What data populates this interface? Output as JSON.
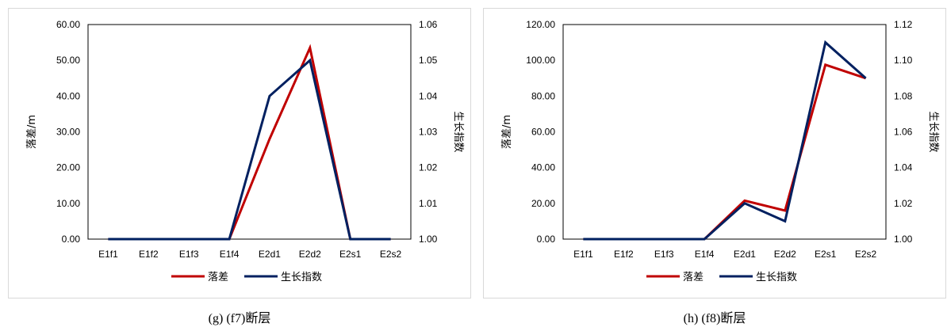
{
  "colors": {
    "series1": "#c00000",
    "series2": "#002060",
    "axis": "#000000",
    "border": "#d9d9d9"
  },
  "chart_data": [
    {
      "type": "line",
      "caption": "(g) (f7)断层",
      "categories": [
        "E1f1",
        "E1f2",
        "E1f3",
        "E1f4",
        "E2d1",
        "E2d2",
        "E2s1",
        "E2s2"
      ],
      "ylabel": "落差/m",
      "ylabel_right": "生长指数",
      "ylim": [
        0,
        60
      ],
      "yticks": [
        "0.00",
        "10.00",
        "20.00",
        "30.00",
        "40.00",
        "50.00",
        "60.00"
      ],
      "ylim_right": [
        1.0,
        1.06
      ],
      "yticks_right": [
        "1.00",
        "1.01",
        "1.02",
        "1.03",
        "1.04",
        "1.05",
        "1.06"
      ],
      "grid": false,
      "legend_position": "bottom",
      "series": [
        {
          "name": "落差",
          "axis": "left",
          "color": "#c00000",
          "values": [
            0,
            0,
            0,
            0,
            28,
            53.5,
            0,
            0
          ]
        },
        {
          "name": "生长指数",
          "axis": "right",
          "color": "#002060",
          "values": [
            1.0,
            1.0,
            1.0,
            1.0,
            1.04,
            1.05,
            1.0,
            1.0
          ]
        }
      ]
    },
    {
      "type": "line",
      "caption": "(h) (f8)断层",
      "categories": [
        "E1f1",
        "E1f2",
        "E1f3",
        "E1f4",
        "E2d1",
        "E2d2",
        "E2s1",
        "E2s2"
      ],
      "ylabel": "落差/m",
      "ylabel_right": "生长指数",
      "ylim": [
        0,
        120
      ],
      "yticks": [
        "0.00",
        "20.00",
        "40.00",
        "60.00",
        "80.00",
        "100.00",
        "120.00"
      ],
      "ylim_right": [
        1.0,
        1.12
      ],
      "yticks_right": [
        "1.00",
        "1.02",
        "1.04",
        "1.06",
        "1.08",
        "1.10",
        "1.12"
      ],
      "grid": false,
      "legend_position": "bottom",
      "series": [
        {
          "name": "落差",
          "axis": "left",
          "color": "#c00000",
          "values": [
            0,
            0,
            0,
            0,
            21.5,
            16,
            97.5,
            90
          ]
        },
        {
          "name": "生长指数",
          "axis": "right",
          "color": "#002060",
          "values": [
            1.0,
            1.0,
            1.0,
            1.0,
            1.02,
            1.01,
            1.11,
            1.09
          ]
        }
      ]
    }
  ]
}
